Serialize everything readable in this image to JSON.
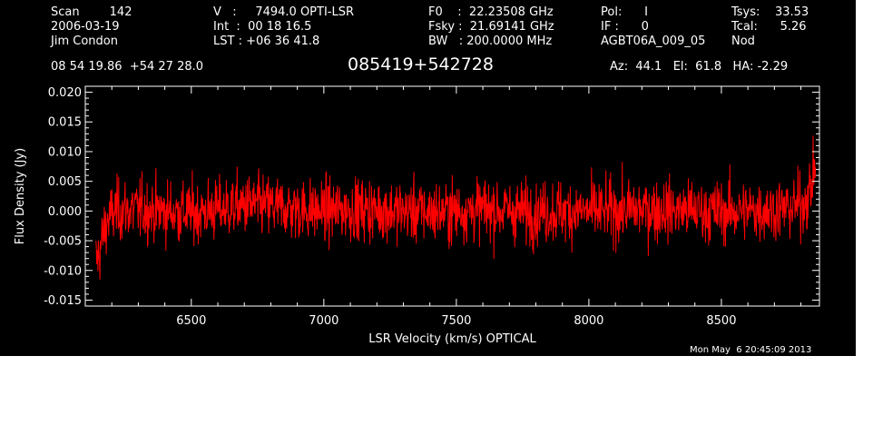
{
  "header": {
    "col1": [
      "Scan        142",
      "2006-03-19",
      "Jim Condon"
    ],
    "col2": [
      "V   :     7494.0 OPTI-LSR",
      "Int  :  00 18 16.5",
      "LST : +06 36 41.8"
    ],
    "col3": [
      "F0    :  22.23508 GHz",
      "Fsky :  21.69141 GHz",
      "BW   : 200.0000 MHz"
    ],
    "col4": [
      "Pol:      I",
      "IF :      0",
      "AGBT06A_009_05"
    ],
    "col5": [
      "Tsys:    33.53",
      "Tcal:      5.26",
      "Nod"
    ],
    "coords": "08 54 19.86  +54 27 28.0",
    "source": "085419+542728",
    "azel": "Az:  44.1   El:  61.8   HA: -2.29",
    "timestamp": "Mon May  6 20:45:09 2013"
  },
  "colors": {
    "background": "#000000",
    "foreground": "#ffffff",
    "spectrum": "#ff0000"
  },
  "chart_data": {
    "type": "line",
    "title": "",
    "xlabel": "LSR Velocity (km/s) OPTICAL",
    "ylabel": "Flux Density (Jy)",
    "xlim": [
      6100,
      8870
    ],
    "ylim": [
      -0.016,
      0.021
    ],
    "xticks": [
      6500,
      7000,
      7500,
      8000,
      8500
    ],
    "xtick_labels": [
      "6500",
      "7000",
      "7500",
      "8000",
      "8500"
    ],
    "yticks": [
      -0.015,
      -0.01,
      -0.005,
      0.0,
      0.005,
      0.01,
      0.015,
      0.02
    ],
    "ytick_labels": [
      "-0.015",
      "-0.010",
      "-0.005",
      "0.000",
      "0.005",
      "0.010",
      "0.015",
      "0.020"
    ],
    "grid": false,
    "series": [
      {
        "color": "#ff0000",
        "noise_rms_jy": 0.0026,
        "x": [
          6140,
          6150,
          6160,
          6170,
          6180,
          6195,
          6215,
          6240,
          6300,
          6400,
          6500,
          6600,
          6700,
          6800,
          6900,
          7000,
          7100,
          7200,
          7300,
          7400,
          7500,
          7600,
          7700,
          7800,
          7900,
          8000,
          8100,
          8200,
          8300,
          8400,
          8500,
          8600,
          8700,
          8760,
          8800,
          8820,
          8840,
          8850,
          8855
        ],
        "y": [
          -0.0085,
          -0.0075,
          -0.0055,
          -0.0035,
          -0.002,
          -0.001,
          0.0,
          0.0002,
          0.0002,
          0.0,
          -0.0003,
          0.0002,
          0.001,
          0.0008,
          0.0003,
          0.0,
          0.0003,
          0.0002,
          0.0,
          -0.0002,
          0.0,
          0.0003,
          0.0,
          -0.0002,
          0.0,
          -0.0001,
          0.0,
          0.0003,
          0.0002,
          0.0,
          -0.0001,
          0.0,
          0.0003,
          0.0005,
          0.0012,
          0.002,
          0.004,
          0.007,
          0.0085
        ]
      }
    ]
  }
}
